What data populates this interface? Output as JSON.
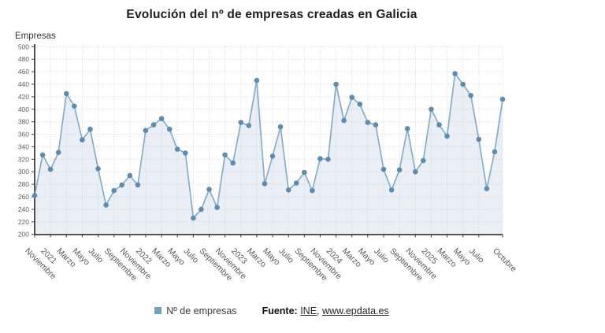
{
  "title": "Evolución del nº de empresas creadas en Galicia",
  "y_axis_title": "Empresas",
  "legend": {
    "series_label": "Nº de empresas"
  },
  "source": {
    "prefix_label": "Fuente:",
    "link_ine": "INE",
    "separator": ", ",
    "link_epdata": "www.epdata.es"
  },
  "colors": {
    "accent_marker": "#5e8cb0",
    "accent_line": "#87acc8",
    "area_fill": "#e9eff5",
    "grid": "#cfd4d9",
    "axis": "#3f3f3f",
    "tick_text": "#5a6268",
    "legend_swatch": "#74a3c1"
  },
  "chart_data": {
    "type": "line",
    "title": "Evolución del nº de empresas creadas en Galicia",
    "ylabel": "Empresas",
    "xlabel": "",
    "ylim": [
      200,
      500
    ],
    "ytick_step": 20,
    "grid": true,
    "legend_position": "bottom",
    "series_name": "Nº de empresas",
    "x_start": "Noviembre 2020",
    "x_end": "Octubre 2025",
    "frequency": "monthly",
    "values": [
      262,
      327,
      304,
      331,
      425,
      405,
      351,
      368,
      305,
      247,
      270,
      279,
      294,
      279,
      366,
      375,
      385,
      368,
      336,
      330,
      226,
      240,
      272,
      243,
      327,
      314,
      379,
      374,
      446,
      281,
      325,
      372,
      271,
      282,
      299,
      270,
      321,
      320,
      440,
      382,
      419,
      408,
      379,
      375,
      304,
      271,
      303,
      369,
      300,
      318,
      400,
      375,
      357,
      457,
      440,
      422,
      352,
      273,
      332,
      416
    ],
    "x_ticks": [
      {
        "index": 0,
        "label": "Noviembre"
      },
      {
        "index": 2,
        "label": "2021"
      },
      {
        "index": 4,
        "label": "Marzo"
      },
      {
        "index": 6,
        "label": "Mayo"
      },
      {
        "index": 8,
        "label": "Julio"
      },
      {
        "index": 10,
        "label": "Septiembre"
      },
      {
        "index": 12,
        "label": "Noviembre"
      },
      {
        "index": 14,
        "label": "2022"
      },
      {
        "index": 16,
        "label": "Marzo"
      },
      {
        "index": 18,
        "label": "Mayo"
      },
      {
        "index": 20,
        "label": "Julio"
      },
      {
        "index": 22,
        "label": "Septiembre"
      },
      {
        "index": 24,
        "label": "Noviembre"
      },
      {
        "index": 26,
        "label": "2023"
      },
      {
        "index": 28,
        "label": "Marzo"
      },
      {
        "index": 30,
        "label": "Mayo"
      },
      {
        "index": 32,
        "label": "Julio"
      },
      {
        "index": 34,
        "label": "Septiembre"
      },
      {
        "index": 36,
        "label": "Noviembre"
      },
      {
        "index": 38,
        "label": "2024"
      },
      {
        "index": 40,
        "label": "Marzo"
      },
      {
        "index": 42,
        "label": "Mayo"
      },
      {
        "index": 44,
        "label": "Julio"
      },
      {
        "index": 46,
        "label": "Septiembre"
      },
      {
        "index": 48,
        "label": "Noviembre"
      },
      {
        "index": 50,
        "label": "2025"
      },
      {
        "index": 52,
        "label": "Marzo"
      },
      {
        "index": 54,
        "label": "Mayo"
      },
      {
        "index": 56,
        "label": "Julio"
      },
      {
        "index": 59,
        "label": "Octubre"
      }
    ]
  }
}
